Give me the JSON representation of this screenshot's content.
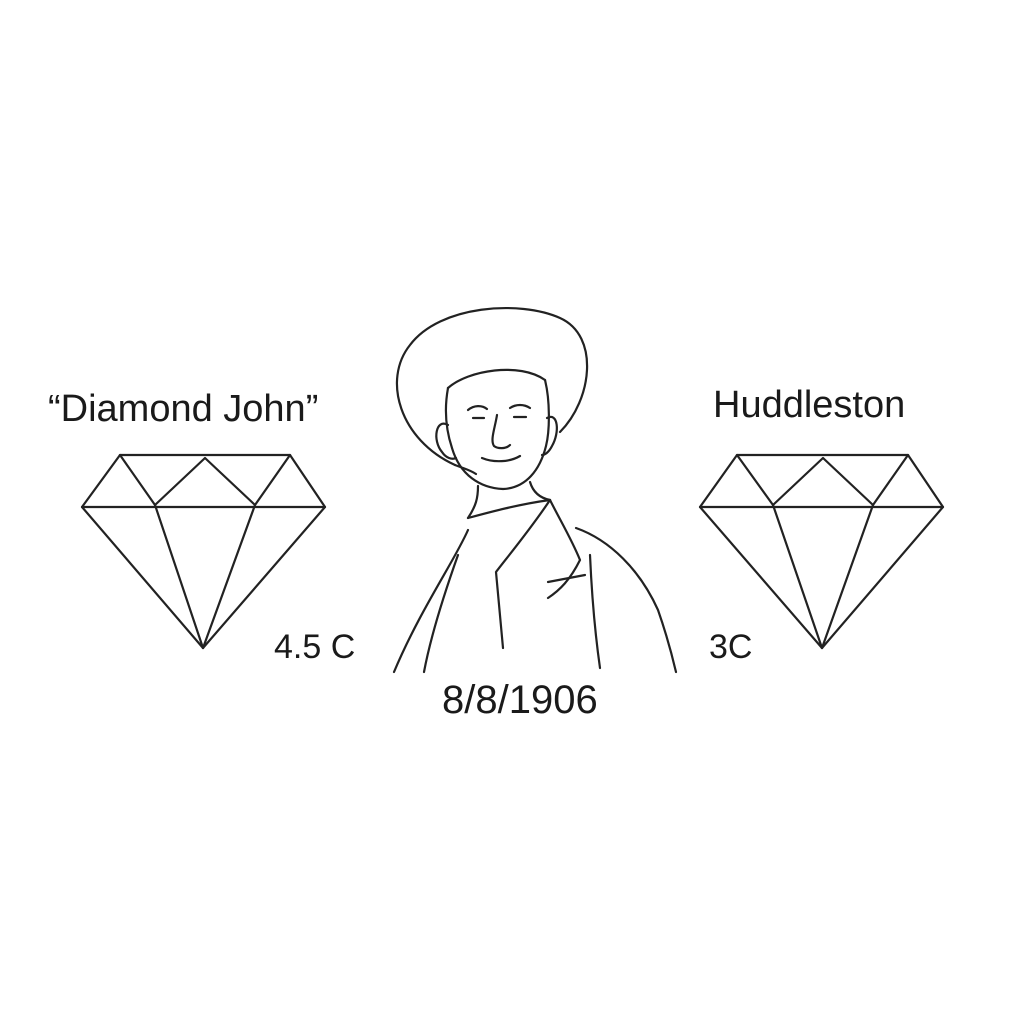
{
  "illustration": {
    "title_left": "“Diamond John”",
    "title_right": "Huddleston",
    "carat_left": "4.5 C",
    "carat_right": "3C",
    "date": "8/8/1906"
  },
  "icons": {
    "left": "diamond-outline-icon",
    "right": "diamond-outline-icon",
    "center": "portrait-sketch"
  },
  "colors": {
    "background": "#ffffff",
    "ink": "#222222"
  }
}
